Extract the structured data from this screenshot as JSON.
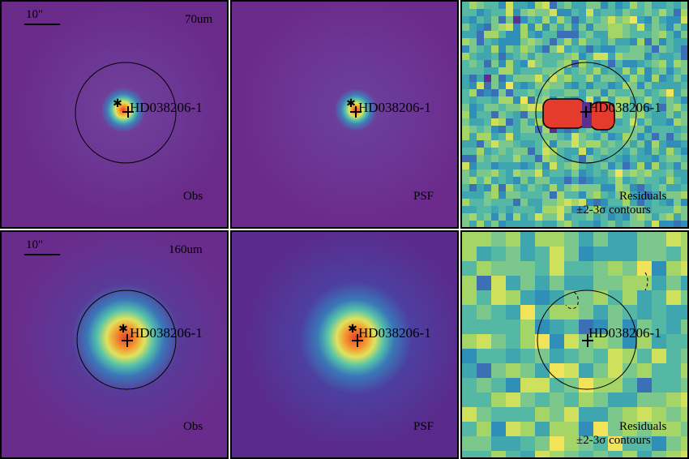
{
  "source_name": "HD038206-1",
  "rows": [
    {
      "band": "70um",
      "scale_label": "10\"",
      "panels": [
        {
          "label": "Obs"
        },
        {
          "label": "PSF"
        },
        {
          "label": "Residuals",
          "label2": "±2-3σ contours"
        }
      ]
    },
    {
      "band": "160um",
      "scale_label": "10\"",
      "panels": [
        {
          "label": "Obs"
        },
        {
          "label": "PSF"
        },
        {
          "label": "Residuals",
          "label2": "±2-3σ contours"
        }
      ]
    }
  ],
  "colors": {
    "background_purple": "#6a2a8a",
    "psf_purple": "#5a2a8c",
    "peak_red": "#e8432e",
    "residual_teal": "#3fa6b0",
    "residual_green": "#9fd65a",
    "contour": "#000000"
  }
}
